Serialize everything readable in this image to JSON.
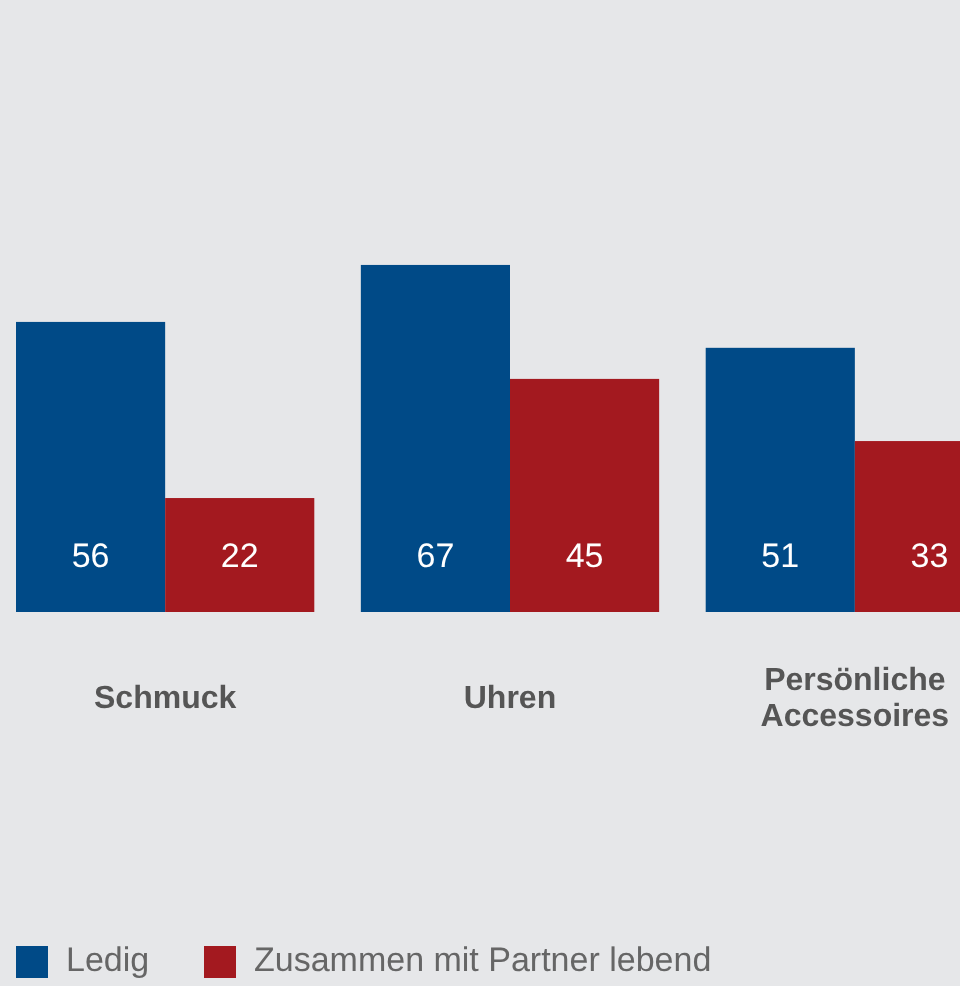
{
  "chart_data": {
    "type": "bar",
    "categories": [
      "Schmuck",
      "Uhren",
      "Persönliche Accessoires"
    ],
    "series": [
      {
        "name": "Ledig",
        "color": "#004a87",
        "values": [
          56,
          67,
          51
        ]
      },
      {
        "name": "Zusammen mit Partner lebend",
        "color": "#a3191f",
        "values": [
          22,
          45,
          33
        ]
      }
    ],
    "data_labels": true,
    "legend": "bottom left"
  }
}
